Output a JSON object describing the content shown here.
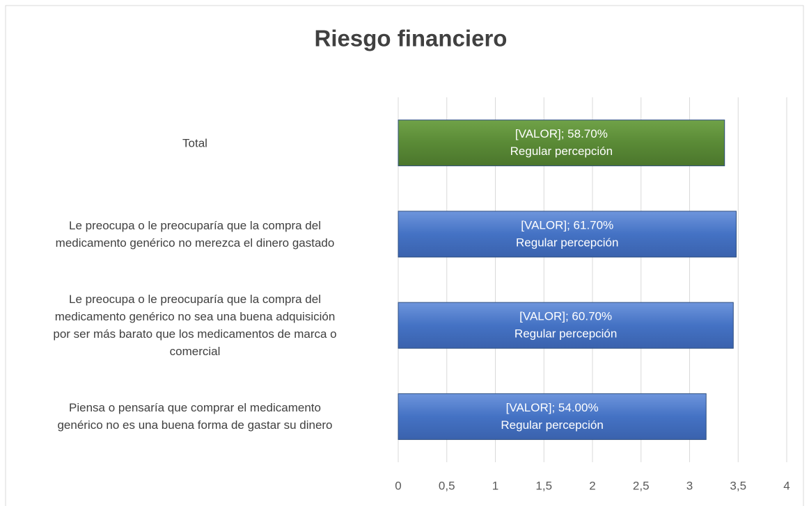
{
  "chart_data": {
    "type": "bar",
    "orientation": "horizontal",
    "title": "Riesgo financiero",
    "categories": [
      "Total",
      "Le preocupa o le preocuparía que la compra del\nmedicamento genérico no merezca el dinero gastado",
      "Le preocupa o le preocuparía que la compra del\nmedicamento genérico no sea una buena adquisición\npor ser más barato que los medicamentos de marca o\ncomercial",
      "Piensa o pensaría que comprar el medicamento\ngenérico no es una buena forma de gastar su dinero"
    ],
    "values": [
      3.36,
      3.48,
      3.45,
      3.17
    ],
    "bar_labels": [
      "[VALOR];  58.70%",
      "[VALOR];  61.70%",
      "[VALOR];  60.70%",
      "[VALOR];  54.00%"
    ],
    "bar_sublabels": [
      "Regular percepción",
      "Regular percepción",
      "Regular percepción",
      "Regular percepción"
    ],
    "colors": [
      "#5a8a36",
      "#4472c4",
      "#4472c4",
      "#4472c4"
    ],
    "xlim": [
      0,
      4
    ],
    "xticks": [
      0,
      {
        "value": 0.5,
        "label": "0,5"
      },
      1,
      {
        "value": 1.5,
        "label": "1,5"
      },
      2,
      {
        "value": 2.5,
        "label": "2,5"
      },
      3,
      {
        "value": 3.5,
        "label": "3,5"
      },
      4
    ],
    "grid": true
  }
}
